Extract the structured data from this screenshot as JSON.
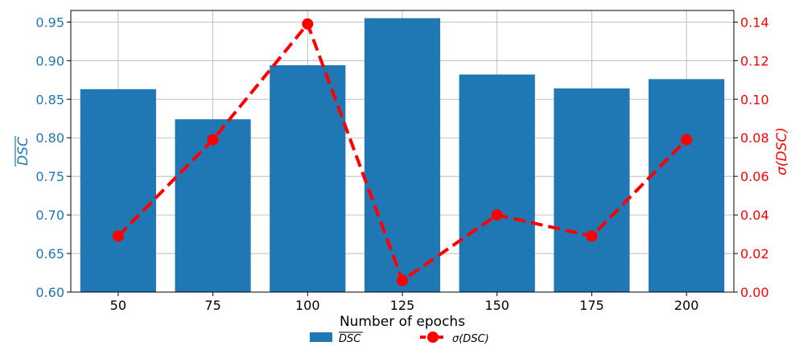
{
  "chart_data": {
    "type": "bar",
    "categories": [
      "50",
      "75",
      "100",
      "125",
      "150",
      "175",
      "200"
    ],
    "xlabel": "Number of epochs",
    "series": [
      {
        "name": "DSC",
        "name_display": "overline",
        "kind": "bar",
        "axis": "left",
        "color": "#1f77b4",
        "values": [
          0.863,
          0.824,
          0.894,
          0.955,
          0.882,
          0.864,
          0.876
        ]
      },
      {
        "name": "σ(DSC)",
        "kind": "line",
        "axis": "right",
        "color": "#ff0000",
        "line_style": "dashed",
        "marker": "circle",
        "values": [
          0.029,
          0.079,
          0.139,
          0.006,
          0.04,
          0.029,
          0.079
        ]
      }
    ],
    "y_left": {
      "label": "DSC",
      "label_display": "overline",
      "color": "#1f77b4",
      "ylim": [
        0.6,
        0.965
      ],
      "ticks": [
        "0.60",
        "0.65",
        "0.70",
        "0.75",
        "0.80",
        "0.85",
        "0.90",
        "0.95"
      ]
    },
    "y_right": {
      "label": "σ(DSC)",
      "color": "#ff0000",
      "ylim": [
        0.0,
        0.146
      ],
      "ticks": [
        "0.00",
        "0.02",
        "0.04",
        "0.06",
        "0.08",
        "0.10",
        "0.12",
        "0.14"
      ]
    },
    "grid": true,
    "legend_placement": "bottom-center"
  }
}
